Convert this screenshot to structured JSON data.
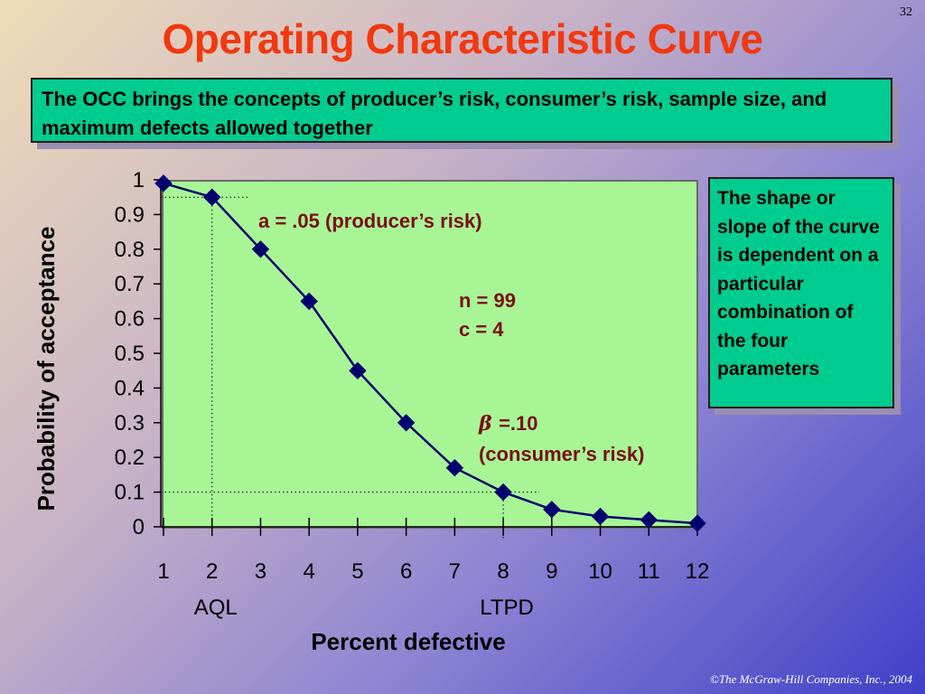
{
  "slide": {
    "page_number": "32",
    "title": "Operating Characteristic Curve",
    "intro_text": "The OCC brings the concepts of producer’s risk, consumer’s risk, sample size, and maximum defects allowed together",
    "side_note": "The shape or slope of the curve is dependent on a particular combination of the four parameters",
    "copyright": "©The McGraw-Hill Companies, Inc., 2004"
  },
  "colors": {
    "title": "#f2380f",
    "box_fill": "#00cc8f",
    "plot_fill": "#a8f596",
    "series_line": "#00006e",
    "annotation": "#7a0e14",
    "copyright": "#ffffff"
  },
  "chart_data": {
    "type": "line",
    "title": "",
    "xlabel": "Percent defective",
    "ylabel": "Probability of acceptance",
    "x": [
      1,
      2,
      3,
      4,
      5,
      6,
      7,
      8,
      9,
      10,
      11,
      12
    ],
    "x_tick_labels": [
      "1",
      "2",
      "3",
      "4",
      "5",
      "6",
      "7",
      "8",
      "9",
      "10",
      "11",
      "12"
    ],
    "y_tick_labels": [
      "0",
      "0.1",
      "0.2",
      "0.3",
      "0.4",
      "0.5",
      "0.6",
      "0.7",
      "0.8",
      "0.9",
      "1"
    ],
    "ylim": [
      0,
      1
    ],
    "grid": false,
    "marker": "diamond",
    "series": [
      {
        "values": [
          0.99,
          0.95,
          0.8,
          0.65,
          0.45,
          0.3,
          0.17,
          0.1,
          0.05,
          0.03,
          0.02,
          0.01
        ]
      }
    ],
    "reference_lines": [
      {
        "x": 2,
        "y": 0.95,
        "label": "AQL"
      },
      {
        "x": 8,
        "y": 0.1,
        "label": "LTPD"
      }
    ],
    "annotations": {
      "producer_risk": "a = .05 (producer’s risk)",
      "sample_size": "n = 99",
      "acceptance_number": "c = 4",
      "beta_symbol": "β",
      "beta_value": "=.10",
      "consumer_risk": "(consumer’s risk)"
    }
  }
}
